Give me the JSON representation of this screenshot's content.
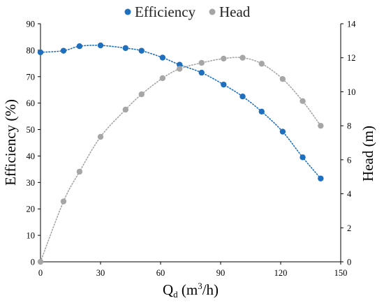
{
  "chart_data": {
    "type": "scatter",
    "x_label_main": "Q",
    "x_label_sub": "d",
    "x_label_rest_a": " (m",
    "x_label_sup": "3",
    "x_label_rest_b": "/h)",
    "ylabel_left": "Efficiency (%)",
    "ylabel_right": "Head (m)",
    "xlim": [
      0,
      150
    ],
    "ylim_left": [
      0,
      90
    ],
    "ylim_right": [
      0,
      14
    ],
    "x_ticks": [
      0,
      30,
      60,
      90,
      120,
      150
    ],
    "y_ticks_left": [
      0,
      10,
      20,
      30,
      40,
      50,
      60,
      70,
      80,
      90
    ],
    "y_ticks_right": [
      0,
      2,
      4,
      6,
      8,
      10,
      12,
      14
    ],
    "grid": false,
    "legend_position": "top",
    "series": [
      {
        "name": "Efficiency",
        "axis": "left",
        "color": "#1f6fbf",
        "line_style": "dotted",
        "x": [
          0,
          11.5,
          19.5,
          30,
          42.5,
          50.5,
          61,
          69.5,
          80.5,
          91.5,
          101,
          110.5,
          121,
          131,
          140
        ],
        "y": [
          79.2,
          79.8,
          81.5,
          81.8,
          80.8,
          79.8,
          77.2,
          74.5,
          71.5,
          67,
          62.5,
          56.8,
          49.2,
          39.5,
          31.5
        ]
      },
      {
        "name": "Head",
        "axis": "right",
        "color": "#a6a6a6",
        "line_style": "dotted",
        "x": [
          0,
          11.5,
          19.5,
          30,
          42.5,
          50.5,
          61,
          69.5,
          80.5,
          91.5,
          101,
          110.5,
          121,
          131,
          140
        ],
        "y": [
          0,
          3.55,
          5.3,
          7.35,
          8.95,
          9.85,
          10.8,
          11.35,
          11.7,
          11.95,
          12,
          11.65,
          10.75,
          9.45,
          8
        ]
      }
    ]
  }
}
